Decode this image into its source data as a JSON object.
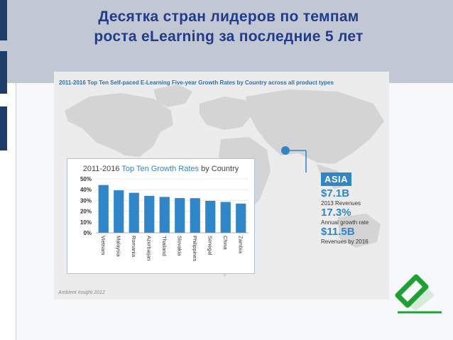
{
  "slide": {
    "title_line1": "Десятка стран лидеров по темпам",
    "title_line2": "роста eLearning за последние 5 лет"
  },
  "infographic": {
    "header": "2011-2016 Top Ten Self-paced E-Learning Five-year Growth Rates by Country across all product types",
    "source": "Ambient Insight 2012",
    "region": {
      "name": "ASIA",
      "revenue_2013": "$7.1B",
      "revenue_2013_label": "2013 Revenues",
      "growth_rate": "17.3%",
      "growth_rate_label": "Annual growth rate",
      "revenue_2016": "$11.5B",
      "revenue_2016_label": "Revenues by 2016"
    }
  },
  "chart_data": {
    "type": "bar",
    "title_prefix": "2011-2016 ",
    "title_highlight": "Top Ten Growth Rates",
    "title_suffix": " by Country",
    "categories": [
      "Vietnam",
      "Malaysia",
      "Romania",
      "Azerbaijan",
      "Thailand",
      "Slovakia",
      "Philippines",
      "Senegal",
      "China",
      "Zambia"
    ],
    "values": [
      44.3,
      39.4,
      37.1,
      34.2,
      33.3,
      32.2,
      32.1,
      29.6,
      28.6,
      27.1
    ],
    "y_ticks": [
      "0%",
      "10%",
      "20%",
      "30%",
      "40%",
      "50%"
    ],
    "ylim": [
      0,
      50
    ],
    "grid": true,
    "bar_color": "#2f86c8"
  },
  "colors": {
    "title": "#1f3d8c",
    "accent": "#2f86c8",
    "logo_green": "#1aa232"
  }
}
